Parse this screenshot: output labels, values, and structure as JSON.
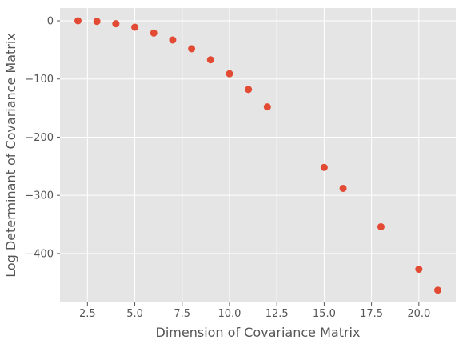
{
  "chart_data": {
    "type": "scatter",
    "title": "",
    "xlabel": "Dimension of Covariance Matrix",
    "ylabel": "Log Determinant of Covariance Matrix",
    "xlim": [
      1.05,
      21.95
    ],
    "ylim": [
      -484,
      22
    ],
    "grid": true,
    "legend": "none",
    "x_ticks": [
      2.5,
      5.0,
      7.5,
      10.0,
      12.5,
      15.0,
      17.5,
      20.0
    ],
    "x_tick_labels": [
      "2.5",
      "5.0",
      "7.5",
      "10.0",
      "12.5",
      "15.0",
      "17.5",
      "20.0"
    ],
    "y_ticks": [
      0,
      -100,
      -200,
      -300,
      -400
    ],
    "y_tick_labels": [
      "0",
      "−100",
      "−200",
      "−300",
      "−400"
    ],
    "series": [
      {
        "color": "#E24A33",
        "points": [
          {
            "x": 2,
            "y": 0
          },
          {
            "x": 3,
            "y": -1
          },
          {
            "x": 4,
            "y": -5
          },
          {
            "x": 5,
            "y": -11
          },
          {
            "x": 6,
            "y": -21
          },
          {
            "x": 7,
            "y": -33
          },
          {
            "x": 8,
            "y": -48
          },
          {
            "x": 9,
            "y": -67
          },
          {
            "x": 10,
            "y": -91
          },
          {
            "x": 11,
            "y": -118
          },
          {
            "x": 12,
            "y": -148
          },
          {
            "x": 15,
            "y": -252
          },
          {
            "x": 16,
            "y": -288
          },
          {
            "x": 18,
            "y": -354
          },
          {
            "x": 20,
            "y": -427
          },
          {
            "x": 21,
            "y": -463
          }
        ]
      }
    ]
  },
  "style": {
    "plot_background": "#E5E5E5",
    "grid_color": "#FFFFFF",
    "text_color": "#555555",
    "marker_color": "#E24A33"
  }
}
